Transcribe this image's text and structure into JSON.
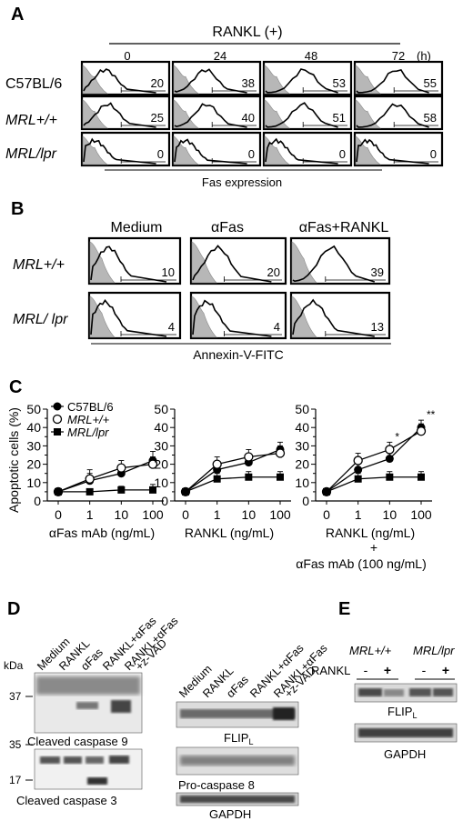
{
  "panel_a": {
    "letter": "A",
    "treatment": "RANKL (+)",
    "times": [
      "0",
      "24",
      "48",
      "72"
    ],
    "time_unit": "(h)",
    "rows": [
      {
        "label": "C57BL/6",
        "italic": false,
        "values": [
          "20",
          "38",
          "53",
          "55"
        ]
      },
      {
        "label": "MRL+/+",
        "italic": true,
        "values": [
          "25",
          "40",
          "51",
          "58"
        ]
      },
      {
        "label": "MRL/lpr",
        "italic": true,
        "values": [
          "0",
          "0",
          "0",
          "0"
        ]
      }
    ],
    "xlabel": "Fas expression"
  },
  "panel_b": {
    "letter": "B",
    "conditions": [
      "Medium",
      "αFas",
      "αFas+RANKL"
    ],
    "rows": [
      {
        "label": "MRL+/+",
        "values": [
          "10",
          "20",
          "39"
        ]
      },
      {
        "label": "MRL/ lpr",
        "values": [
          "4",
          "4",
          "13"
        ]
      }
    ],
    "xlabel": "Annexin-V-FITC"
  },
  "panel_c": {
    "letter": "C",
    "ylabel": "Apoptotic cells (%)",
    "legend": [
      "C57BL/6",
      "MRL+/+",
      "MRL/lpr"
    ],
    "xticks": [
      "0",
      "1",
      "10",
      "100"
    ],
    "yticks": [
      "0",
      "5",
      "10",
      "15",
      "20",
      "25",
      "30",
      "35",
      "40",
      "45",
      "50"
    ],
    "asterisk_single": "*",
    "asterisk_double": "**"
  },
  "chart_data": [
    {
      "type": "line",
      "xlabel": "αFas mAb (ng/mL)",
      "x": [
        "0",
        "1",
        "10",
        "100"
      ],
      "ylim": [
        0,
        50
      ],
      "series": [
        {
          "name": "C57BL/6",
          "values": [
            5,
            11,
            15,
            22
          ],
          "errors": [
            0,
            4,
            4,
            5
          ]
        },
        {
          "name": "MRL+/+",
          "values": [
            5,
            12,
            18,
            20
          ],
          "errors": [
            0,
            5,
            4,
            4
          ]
        },
        {
          "name": "MRL/lpr",
          "values": [
            5,
            5,
            6,
            6
          ],
          "errors": [
            0,
            1,
            2,
            3
          ]
        }
      ]
    },
    {
      "type": "line",
      "xlabel": "RANKL (ng/mL)",
      "x": [
        "0",
        "1",
        "10",
        "100"
      ],
      "ylim": [
        0,
        50
      ],
      "series": [
        {
          "name": "C57BL/6",
          "values": [
            5,
            17,
            21,
            28
          ],
          "errors": [
            0,
            4,
            4,
            4
          ]
        },
        {
          "name": "MRL+/+",
          "values": [
            5,
            20,
            24,
            26
          ],
          "errors": [
            0,
            4,
            4,
            4
          ]
        },
        {
          "name": "MRL/lpr",
          "values": [
            5,
            12,
            13,
            13
          ],
          "errors": [
            0,
            3,
            3,
            3
          ]
        }
      ]
    },
    {
      "type": "line",
      "xlabel": "RANKL (ng/mL)",
      "xlabel2": "+",
      "xlabel3": "αFas mAb (100 ng/mL)",
      "x": [
        "0",
        "1",
        "10",
        "100"
      ],
      "ylim": [
        0,
        50
      ],
      "series": [
        {
          "name": "C57BL/6",
          "values": [
            5,
            17,
            23,
            40
          ],
          "errors": [
            0,
            4,
            4,
            4
          ]
        },
        {
          "name": "MRL+/+",
          "values": [
            5,
            22,
            28,
            38
          ],
          "errors": [
            0,
            4,
            4,
            4
          ]
        },
        {
          "name": "MRL/lpr",
          "values": [
            5,
            12,
            13,
            13
          ],
          "errors": [
            0,
            3,
            3,
            3
          ]
        }
      ]
    }
  ],
  "panel_d": {
    "letter": "D",
    "lanes": [
      "Medium",
      "RANKL",
      "αFas",
      "RANKL+αFas",
      "RANKL+αFas +z-VAD"
    ],
    "kda": "kDa",
    "mw_top": [
      "37"
    ],
    "mw_bottom": [
      "35",
      "17"
    ],
    "blot_labels": {
      "casp9": "Cleaved caspase 9",
      "casp3": "Cleaved caspase 3",
      "flip": "FLIP",
      "flip_sub": "L",
      "procasp8": "Pro-caspase 8",
      "gapdh": "GAPDH"
    }
  },
  "panel_e": {
    "letter": "E",
    "groups": [
      "MRL+/+",
      "MRL/lpr"
    ],
    "rankl_label": "RANKL",
    "signs": [
      "-",
      "+",
      "-",
      "+"
    ],
    "blot_labels": {
      "flip": "FLIP",
      "flip_sub": "L",
      "gapdh": "GAPDH"
    }
  }
}
